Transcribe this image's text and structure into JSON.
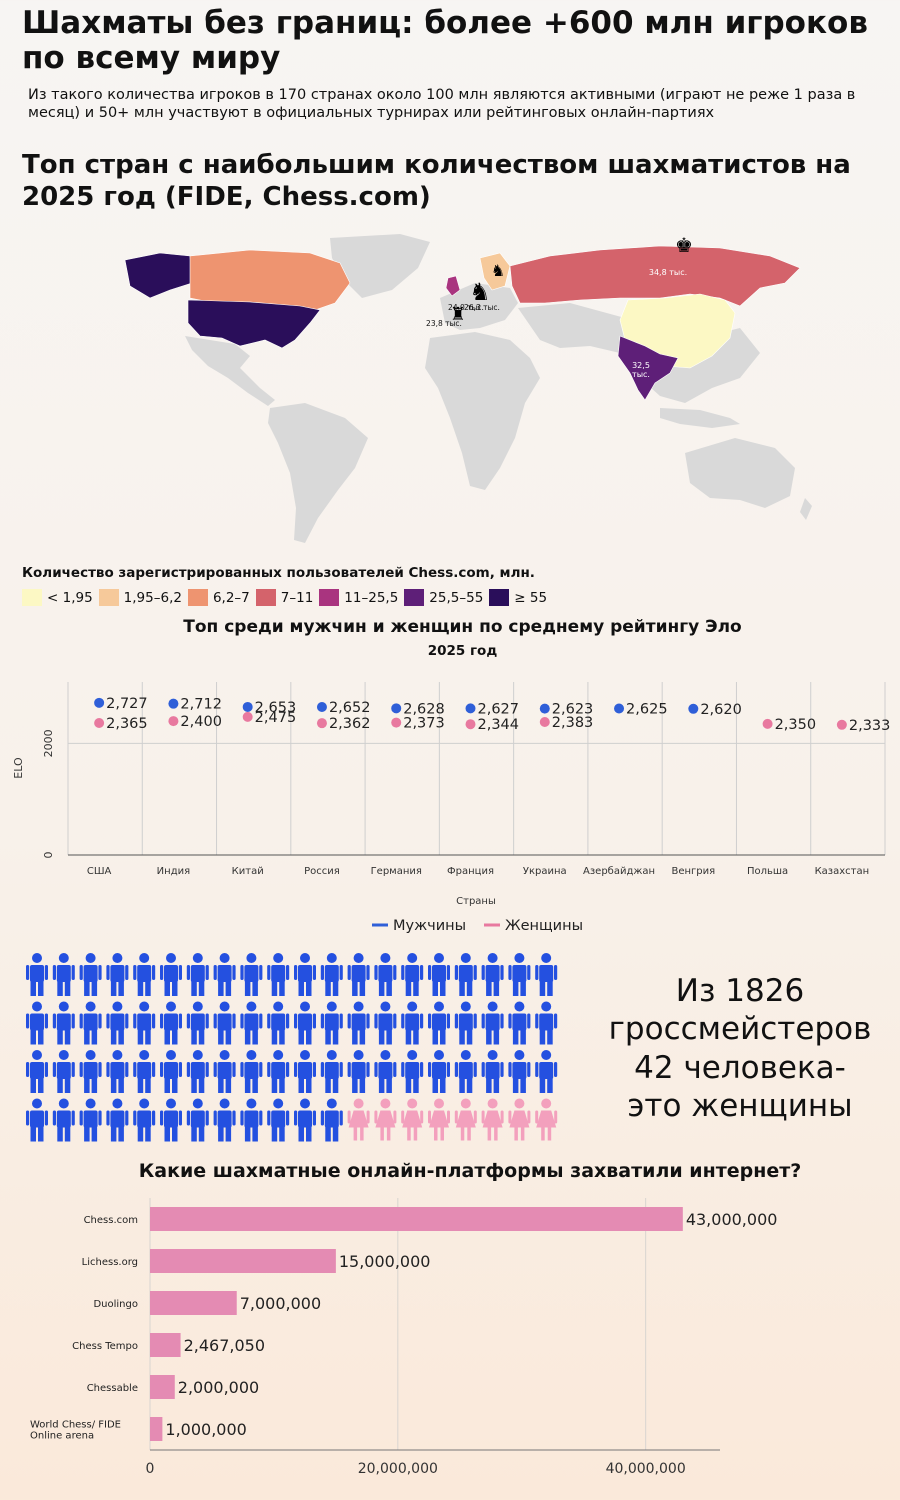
{
  "header": {
    "title": "Шахматы без границ: более +600 млн игроков по всему миру",
    "subtitle": "Из такого количества игроков в 170 странах около 100 млн являются активными (играют не реже 1 раза в месяц) и 50+ млн участвуют в официальных турнирах или рейтинговых онлайн-партиях"
  },
  "map": {
    "title": "Топ стран с наибольшим количеством шахматистов на 2025 год (FIDE, Chess.com)",
    "labels": {
      "russia": "34,8 тыс.",
      "india_line1": "32,5",
      "india_line2": "тыс.",
      "germany": "26,3 тыс.",
      "france": "24,0 тыс.",
      "spain": "23,8 тыс."
    },
    "legend_title": "Количество зарегистрированных пользователей Chess.com, млн.",
    "legend": [
      {
        "label": "< 1,95",
        "color": "#fcf8c4"
      },
      {
        "label": "1,95–6,2",
        "color": "#f6c99a"
      },
      {
        "label": "6,2–7",
        "color": "#ee9470"
      },
      {
        "label": "7–11",
        "color": "#d4636b"
      },
      {
        "label": "11–25,5",
        "color": "#a9347f"
      },
      {
        "label": "25,5–55",
        "color": "#5e1f78"
      },
      {
        "label": "≥ 55",
        "color": "#2a0e5a"
      }
    ],
    "country_colors": {
      "usa": "#2a0e5a",
      "canada": "#ee9470",
      "alaska": "#2a0e5a",
      "russia": "#d4636b",
      "china": "#fcf8c4",
      "india": "#5e1f78",
      "scandinavia": "#f6c99a",
      "uk": "#a9347f",
      "land": "#d9d9d9"
    }
  },
  "chart_data": [
    {
      "type": "scatter",
      "title": "Топ среди мужчин и женщин по среднему рейтингу Эло",
      "subtitle": "2025 год",
      "xlabel": "Страны",
      "ylabel": "ELO",
      "ylim": [
        0,
        3100
      ],
      "yticks": [
        "0",
        "2000"
      ],
      "categories": [
        "США",
        "Индия",
        "Китай",
        "Россия",
        "Германия",
        "Франция",
        "Украина",
        "Азербайджан",
        "Венгрия",
        "Польша",
        "Казахстан"
      ],
      "series": [
        {
          "name": "Мужчины",
          "color": "#2f5fd8",
          "values": [
            2727,
            2712,
            2653,
            2652,
            2628,
            2627,
            2623,
            2625,
            2620,
            null,
            null
          ],
          "labels": [
            "2,727",
            "2,712",
            "2,653",
            "2,652",
            "2,628",
            "2,627",
            "2,623",
            "2,625",
            "2,620",
            "",
            ""
          ]
        },
        {
          "name": "Женщины",
          "color": "#e8799f",
          "values": [
            2365,
            2400,
            2475,
            2362,
            2373,
            2344,
            2383,
            null,
            null,
            2350,
            2333
          ],
          "labels": [
            "2,365",
            "2,400",
            "2,475",
            "2,362",
            "2,373",
            "2,344",
            "2,383",
            "",
            "",
            "2,350",
            "2,333"
          ]
        }
      ]
    },
    {
      "type": "bar",
      "orientation": "horizontal",
      "title": "Какие шахматные онлайн-платформы захватили интернет?",
      "categories": [
        "Chess.com",
        "Lichess.org",
        "Duolingo",
        "Chess Tempo",
        "Chessable",
        "World Chess/ FIDE Online arena"
      ],
      "category_lines": [
        [
          "Chess.com"
        ],
        [
          "Lichess.org"
        ],
        [
          "Duolingo"
        ],
        [
          "Chess Tempo"
        ],
        [
          "Chessable"
        ],
        [
          "World Chess/ FIDE",
          "Online arena"
        ]
      ],
      "values": [
        43000000,
        15000000,
        7000000,
        2467050,
        2000000,
        1000000
      ],
      "value_labels": [
        "43,000,000",
        "15,000,000",
        "7,000,000",
        "2,467,050",
        "2,000,000",
        "1,000,000"
      ],
      "xlim": [
        0,
        46000000
      ],
      "xticks": [
        0,
        20000000,
        40000000
      ],
      "xtick_labels": [
        "0",
        "20,000,000",
        "40,000,000"
      ],
      "color": "#e48bb3"
    }
  ],
  "grandmasters": {
    "text_lines": [
      "Из 1826",
      "гроссмейстеров",
      "42 человека-",
      "это женщины"
    ],
    "rows": 4,
    "cols": 20,
    "female_count": 8,
    "male_color": "#2450e0",
    "female_color": "#f3a0bd"
  }
}
